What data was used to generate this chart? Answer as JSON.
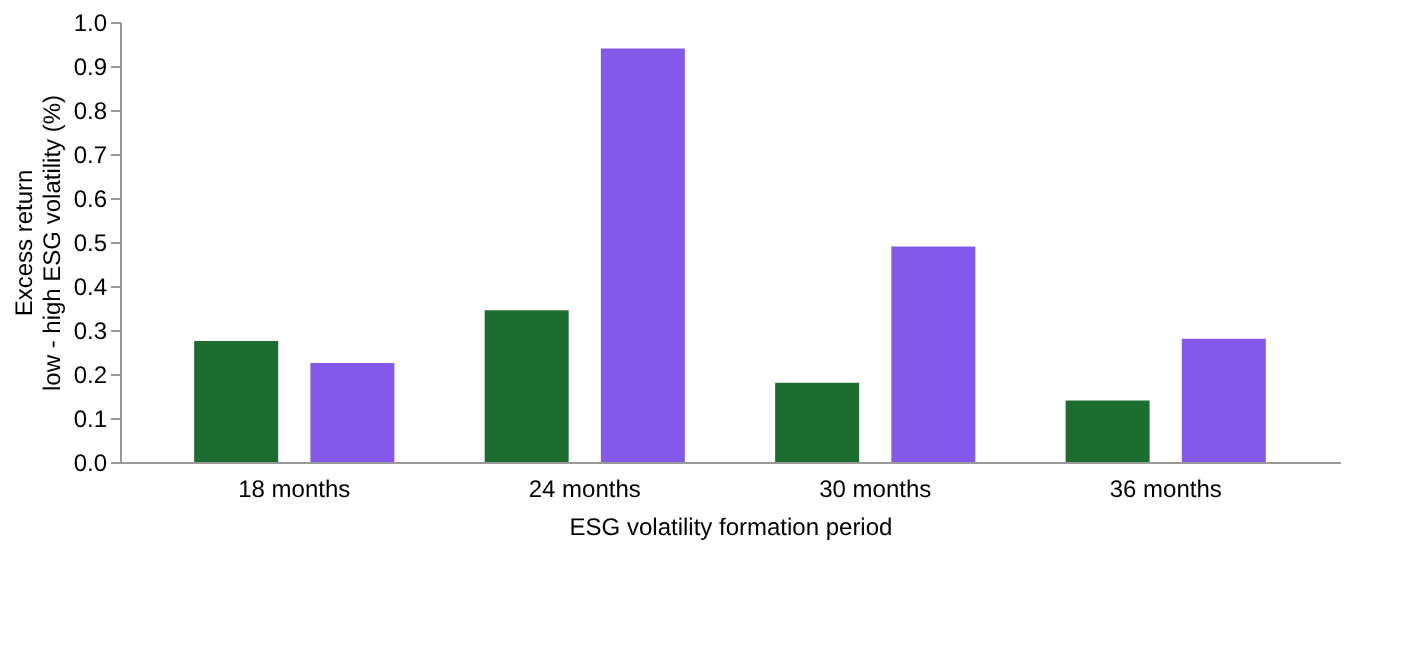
{
  "chart_data": {
    "type": "bar",
    "xlabel": "ESG volatility formation period",
    "ylabel": "Excess return\nlow - high ESG volatility (%)",
    "categories": [
      "18 months",
      "24 months",
      "30 months",
      "36 months"
    ],
    "series": [
      {
        "color": "#1b6e2f",
        "values": [
          0.275,
          0.345,
          0.18,
          0.14
        ]
      },
      {
        "color": "#8458e8",
        "values": [
          0.225,
          0.94,
          0.49,
          0.28
        ]
      }
    ],
    "ylim": [
      0,
      1
    ],
    "yticks": [
      {
        "value": 0,
        "label": "0.0"
      },
      {
        "value": 0.1,
        "label": "0.1"
      },
      {
        "value": 0.2,
        "label": "0.2"
      },
      {
        "value": 0.3,
        "label": "0.3"
      },
      {
        "value": 0.4,
        "label": "0.4"
      },
      {
        "value": 0.5,
        "label": "0.5"
      },
      {
        "value": 0.6,
        "label": "0.6"
      },
      {
        "value": 0.7,
        "label": "0.7"
      },
      {
        "value": 0.8,
        "label": "0.8"
      },
      {
        "value": 0.9,
        "label": "0.9"
      },
      {
        "value": 1,
        "label": "1.0"
      }
    ],
    "grid": false,
    "legend": false
  }
}
